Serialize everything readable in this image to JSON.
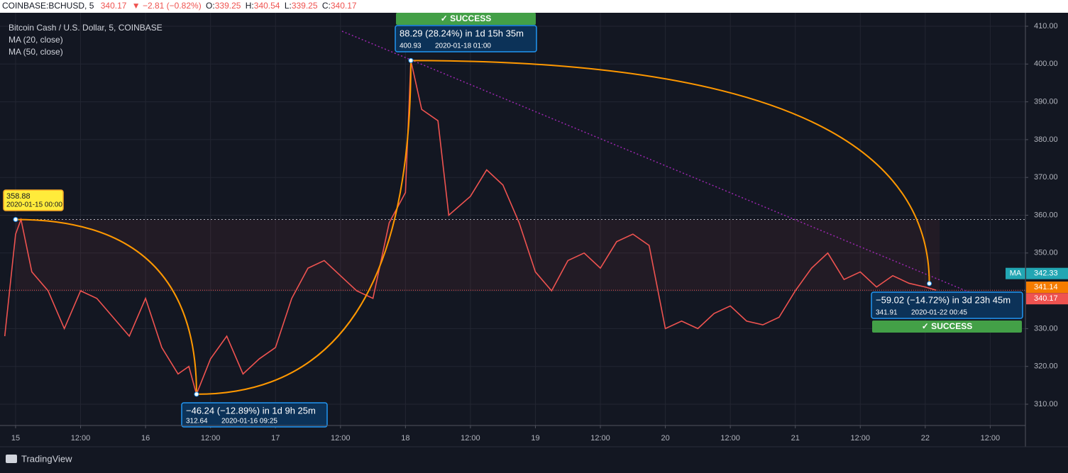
{
  "header": {
    "symbol": "COINBASE:BCHUSD, 5",
    "last": "340.17",
    "change": "▼ −2.81 (−0.82%)",
    "ohlc": [
      {
        "label": "O:",
        "value": "339.25"
      },
      {
        "label": "H:",
        "value": "340.54"
      },
      {
        "label": "L:",
        "value": "339.25"
      },
      {
        "label": "C:",
        "value": "340.17"
      }
    ]
  },
  "chart_data": {
    "type": "line",
    "title": "Bitcoin Cash / U.S. Dollar, 5, COINBASE",
    "indicators": [
      "MA (20, close)",
      "MA (50, close)"
    ],
    "x": [
      -2,
      0,
      1,
      3,
      6,
      9,
      12,
      15,
      18,
      21,
      24,
      27,
      30,
      32,
      33.4,
      36,
      39,
      42,
      45,
      48,
      51,
      54,
      57,
      60,
      63,
      66,
      69,
      72,
      73,
      75,
      78,
      80,
      84,
      87,
      90,
      93,
      96,
      99,
      102,
      105,
      108,
      111,
      114,
      117,
      120,
      123,
      126,
      129,
      132,
      135,
      138,
      141,
      144,
      147,
      150,
      153,
      156,
      159,
      162,
      165,
      168,
      170
    ],
    "series": [
      {
        "color": "#ef5350",
        "values": [
          328,
          355,
          358.88,
          345,
          340,
          330,
          340,
          338,
          333,
          328,
          338,
          325,
          318,
          320,
          312.64,
          322,
          328,
          318,
          322,
          325,
          338,
          346,
          348,
          344,
          340,
          338,
          358,
          366,
          400.93,
          388,
          385,
          360,
          365,
          372,
          368,
          358,
          345,
          340,
          348,
          350,
          346,
          353,
          355,
          352,
          330,
          332,
          330,
          334,
          336,
          332,
          331,
          333,
          340,
          346,
          350,
          343,
          345,
          341,
          344,
          342,
          341,
          340.17
        ]
      }
    ],
    "xlim": [
      -2.88,
      186.5
    ],
    "xticks": [
      {
        "value": 0,
        "label": "15"
      },
      {
        "value": 12,
        "label": "12:00"
      },
      {
        "value": 24,
        "label": "16"
      },
      {
        "value": 36,
        "label": "12:00"
      },
      {
        "value": 48,
        "label": "17"
      },
      {
        "value": 60,
        "label": "12:00"
      },
      {
        "value": 72,
        "label": "18"
      },
      {
        "value": 84,
        "label": "12:00"
      },
      {
        "value": 96,
        "label": "19"
      },
      {
        "value": 108,
        "label": "12:00"
      },
      {
        "value": 120,
        "label": "20"
      },
      {
        "value": 132,
        "label": "12:00"
      },
      {
        "value": 144,
        "label": "21"
      },
      {
        "value": 156,
        "label": "12:00"
      },
      {
        "value": 168,
        "label": "22"
      },
      {
        "value": 180,
        "label": "12:00"
      }
    ],
    "ylim": [
      304.37,
      413.19
    ],
    "yticks": [
      {
        "value": 310,
        "label": "310.00"
      },
      {
        "value": 320,
        "label": "320.00"
      },
      {
        "value": 330,
        "label": "330.00"
      },
      {
        "value": 340,
        "label": "340.00"
      },
      {
        "value": 350,
        "label": "350.00"
      },
      {
        "value": 360,
        "label": "360.00"
      },
      {
        "value": 370,
        "label": "370.00"
      },
      {
        "value": 380,
        "label": "380.00"
      },
      {
        "value": 390,
        "label": "390.00"
      },
      {
        "value": 400,
        "label": "400.00"
      },
      {
        "value": 410,
        "label": "410.00"
      }
    ],
    "grid": true,
    "price_labels": [
      {
        "label": "MA",
        "value": 342.33,
        "color": "#22a6b3"
      },
      {
        "value": 341.14,
        "color": "#f57c00"
      },
      {
        "value": 340.17,
        "color": "#ef5350"
      }
    ],
    "annotations": [
      {
        "price": 358.88,
        "date": "2020-01-15 00:00"
      },
      {
        "measure": "−46.24 (−12.89%) in 1d 9h 25m",
        "price": 312.64,
        "date": "2020-01-16  09:25"
      },
      {
        "measure": "88.29 (28.24%) in 1d 15h 35m",
        "price": 400.93,
        "date": "2020-01-18  01:00",
        "status": "✓ SUCCESS"
      },
      {
        "measure": "−59.02 (−14.72%) in 3d 23h 45m",
        "price": 341.91,
        "date": "2020-01-22  00:45",
        "status": "✓ SUCCESS"
      }
    ]
  },
  "footer": {
    "brand": "TradingView"
  }
}
